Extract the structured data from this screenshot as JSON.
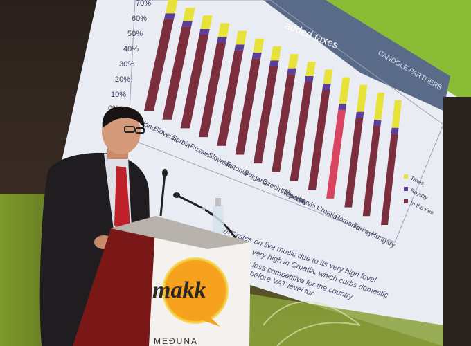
{
  "slide": {
    "title": "added taxes",
    "brand": "CANDOLE PARTNERS",
    "y_ticks": [
      "70%",
      "60%",
      "50%",
      "40%",
      "30%",
      "20%",
      "10%",
      "0%"
    ],
    "countries": [
      "Poland",
      "Slovenia",
      "Serbia",
      "Russia",
      "Slovakia",
      "Estonia",
      "Bulgaria",
      "Czech Republic",
      "Lithuania",
      "Latvia",
      "Croatia",
      "Romania",
      "Turkey",
      "Hungary"
    ],
    "legend": [
      "Taxes",
      "Royalty",
      "In the Fee"
    ],
    "footnote_lines": [
      "VAT rates on live music due to its very high level",
      "ents is very high in Croatia, which curbs domestic",
      "from less competitive for the country",
      "before VAT level for"
    ],
    "colors": {
      "taxes": "#e7e23a",
      "royalty": "#5a3e9a",
      "fee": "#7a2e3e",
      "highlight": "#d9455f"
    }
  },
  "podium": {
    "logo": "makk",
    "caption": "MEĐUNA"
  }
}
